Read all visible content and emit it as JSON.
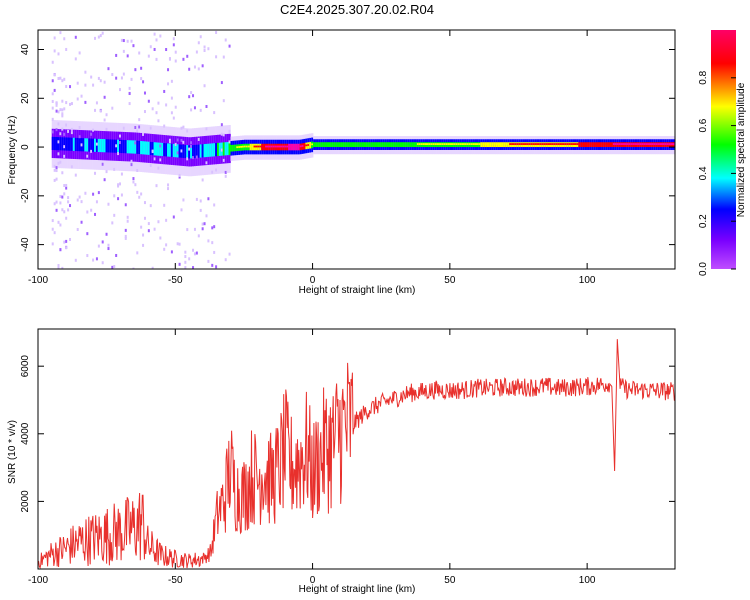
{
  "title": "C2E4.2025.307.20.02.R04",
  "colors": {
    "snr_line": "#e8302c",
    "axis": "#000000",
    "spectrogram_colormap": [
      "#bf4dff",
      "#7a00ff",
      "#0000ff",
      "#00ffff",
      "#00ff00",
      "#ffff00",
      "#ff0000",
      "#ff00aa"
    ]
  },
  "chart_data": [
    {
      "type": "heatmap",
      "name": "spectrogram",
      "xlabel": "Height of straight line (km)",
      "ylabel": "Frequency (Hz)",
      "xlim": [
        -100,
        132
      ],
      "ylim": [
        -50,
        48
      ],
      "xticks": [
        -100,
        -50,
        0,
        50,
        100
      ],
      "yticks": [
        -40,
        -20,
        0,
        20,
        40
      ],
      "xtick_labels": [
        "-100",
        "-50",
        "0",
        "50",
        "100"
      ],
      "ytick_labels": [
        "-40",
        "-20",
        "0",
        "20",
        "40"
      ],
      "colorbar": {
        "label": "Normalized spectral amplitude",
        "range": [
          0,
          1
        ],
        "ticks": [
          0.0,
          0.2,
          0.4,
          0.6,
          0.8
        ],
        "tick_labels": [
          "0.0",
          "0.2",
          "0.4",
          "0.6",
          "0.8"
        ]
      },
      "ridge": [
        {
          "h": -95,
          "f": 1.5,
          "amp": 0.3
        },
        {
          "h": -85,
          "f": 1.0,
          "amp": 0.35
        },
        {
          "h": -75,
          "f": 0.5,
          "amp": 0.35
        },
        {
          "h": -65,
          "f": 0.0,
          "amp": 0.38
        },
        {
          "h": -55,
          "f": -1.0,
          "amp": 0.4
        },
        {
          "h": -45,
          "f": -2.0,
          "amp": 0.4
        },
        {
          "h": -35,
          "f": -1.0,
          "amp": 0.45
        },
        {
          "h": -25,
          "f": 0.0,
          "amp": 0.6
        },
        {
          "h": -15,
          "f": 0.0,
          "amp": 0.9
        },
        {
          "h": -5,
          "f": 0.0,
          "amp": 0.95
        },
        {
          "h": 0,
          "f": 1.0,
          "amp": 0.55
        },
        {
          "h": 25,
          "f": 1.0,
          "amp": 0.5
        },
        {
          "h": 50,
          "f": 1.0,
          "amp": 0.6
        },
        {
          "h": 75,
          "f": 1.0,
          "amp": 0.7
        },
        {
          "h": 100,
          "f": 1.0,
          "amp": 0.8
        },
        {
          "h": 132,
          "f": 1.0,
          "amp": 0.9
        }
      ]
    },
    {
      "type": "line",
      "name": "snr",
      "xlabel": "Height of straight line (km)",
      "ylabel": "SNR (10 * v/v)",
      "xlim": [
        -100,
        132
      ],
      "ylim": [
        0,
        7100
      ],
      "xticks": [
        -100,
        -50,
        0,
        50,
        100
      ],
      "yticks": [
        2000,
        4000,
        6000
      ],
      "xtick_labels": [
        "-100",
        "-50",
        "0",
        "50",
        "100"
      ],
      "ytick_labels": [
        "2000",
        "4000",
        "6000"
      ],
      "series": [
        {
          "name": "SNR",
          "x": [
            -100,
            -95,
            -90,
            -85,
            -80,
            -75,
            -70,
            -65,
            -62,
            -60,
            -55,
            -50,
            -45,
            -40,
            -37,
            -35,
            -32,
            -30,
            -28,
            -25,
            -22,
            -20,
            -18,
            -15,
            -12,
            -10,
            -8,
            -5,
            -2,
            0,
            2,
            5,
            8,
            10,
            15,
            20,
            25,
            30,
            35,
            40,
            45,
            50,
            55,
            60,
            65,
            70,
            75,
            80,
            85,
            90,
            95,
            100,
            105,
            108,
            109,
            110,
            111,
            112,
            115,
            120,
            125,
            132
          ],
          "y": [
            200,
            450,
            600,
            800,
            900,
            1000,
            1100,
            1200,
            1400,
            700,
            400,
            300,
            250,
            300,
            500,
            1500,
            2100,
            3000,
            2300,
            2200,
            2800,
            2600,
            3000,
            2600,
            3000,
            3500,
            3000,
            3200,
            3500,
            2800,
            3200,
            3600,
            3700,
            4100,
            4300,
            4700,
            4900,
            5050,
            5200,
            5250,
            5300,
            5280,
            5300,
            5350,
            5350,
            5380,
            5370,
            5380,
            5400,
            5350,
            5380,
            5400,
            5450,
            5500,
            5400,
            2900,
            6800,
            5400,
            5300,
            5300,
            5280,
            5250
          ]
        }
      ]
    }
  ]
}
